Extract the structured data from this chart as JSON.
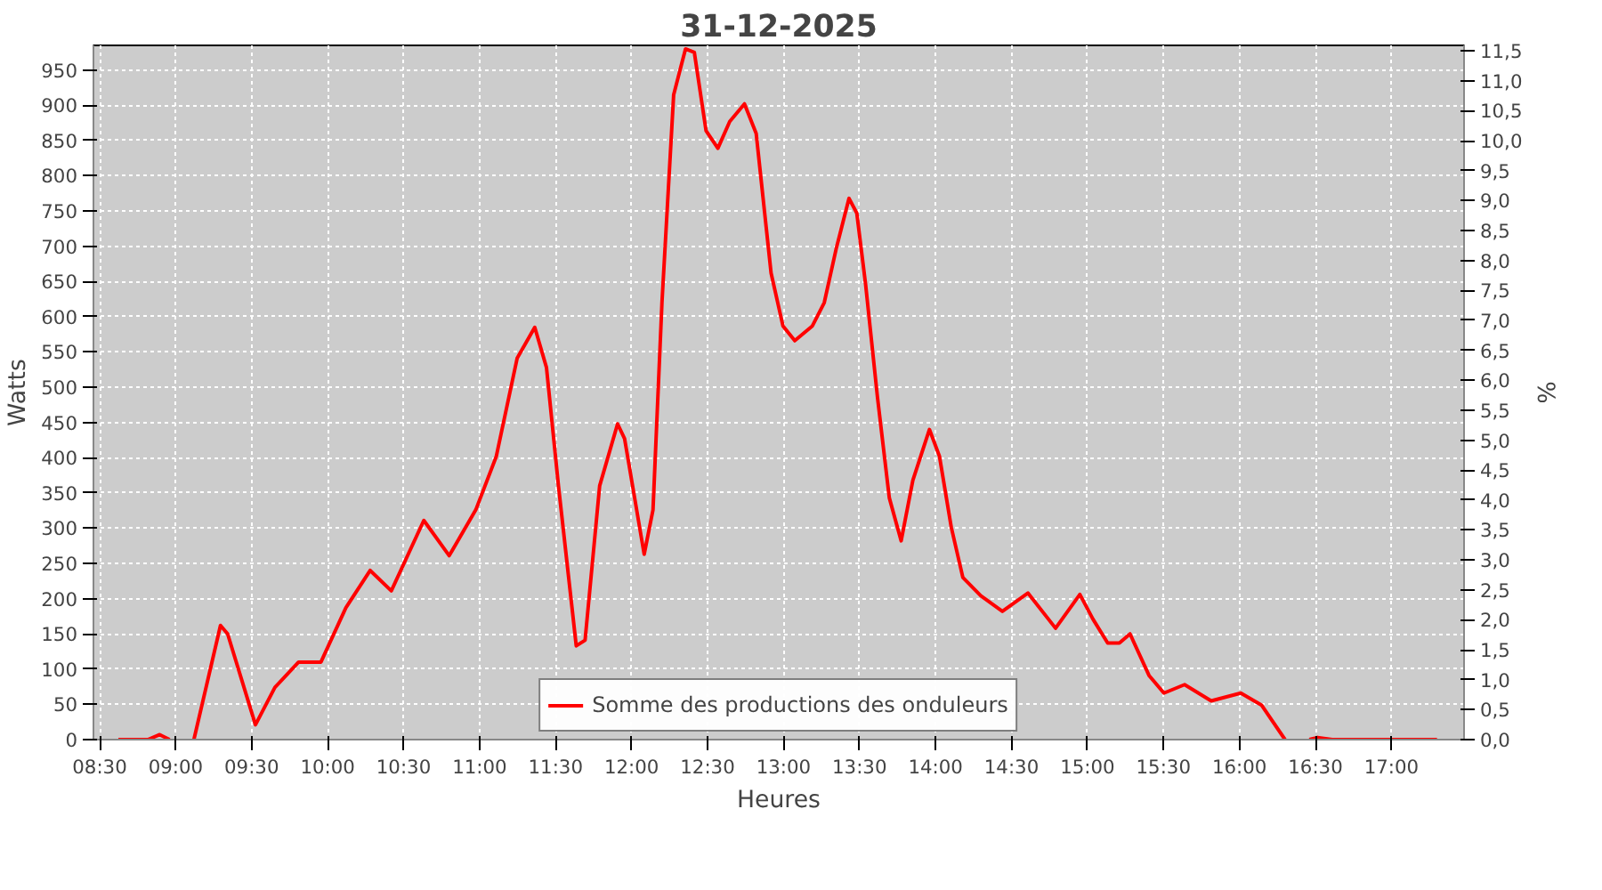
{
  "chart_data": {
    "type": "line",
    "title": "31-12-2025",
    "xlabel": "Heures",
    "ylabel": "Watts",
    "y2label": "%",
    "x": [
      8.623,
      8.817,
      8.895,
      8.96,
      9.04,
      9.12,
      9.295,
      9.342,
      9.525,
      9.653,
      9.809,
      9.956,
      10.12,
      10.28,
      10.419,
      10.633,
      10.8,
      10.975,
      11.11,
      11.247,
      11.363,
      11.44,
      11.519,
      11.636,
      11.694,
      11.79,
      11.908,
      11.954,
      12.083,
      12.141,
      12.2,
      12.277,
      12.355,
      12.413,
      12.49,
      12.568,
      12.646,
      12.743,
      12.82,
      12.918,
      12.996,
      13.074,
      13.19,
      13.268,
      13.346,
      13.431,
      13.482,
      13.54,
      13.618,
      13.696,
      13.774,
      13.851,
      13.96,
      14.026,
      14.104,
      14.18,
      14.298,
      14.44,
      14.608,
      14.79,
      14.95,
      15.036,
      15.133,
      15.21,
      15.28,
      15.405,
      15.503,
      15.639,
      15.814,
      16.009,
      16.145,
      16.3,
      16.4,
      16.46,
      16.514,
      16.61,
      17.3
    ],
    "series": [
      {
        "name": "Somme des productions des onduleurs",
        "color": "#ff0000",
        "values": [
          0,
          0,
          7,
          0,
          null,
          0,
          162,
          150,
          21,
          74,
          110,
          110,
          187,
          240,
          211,
          311,
          261,
          326,
          402,
          541,
          585,
          528,
          360,
          133,
          141,
          360,
          448,
          427,
          263,
          326,
          620,
          915,
          980,
          975,
          864,
          839,
          877,
          902,
          860,
          662,
          587,
          566,
          587,
          620,
          696,
          768,
          747,
          646,
          486,
          343,
          282,
          368,
          440,
          402,
          301,
          230,
          204,
          182,
          208,
          158,
          206,
          171,
          137,
          137,
          150,
          91,
          66,
          78,
          55,
          66,
          49,
          0,
          null,
          0,
          3,
          0,
          0
        ]
      }
    ],
    "xlim": [
      8.459,
      17.478
    ],
    "xticks": [
      {
        "value": 8.5,
        "label": "08:30"
      },
      {
        "value": 9,
        "label": "09:00"
      },
      {
        "value": 9.5,
        "label": "09:30"
      },
      {
        "value": 10,
        "label": "10:00"
      },
      {
        "value": 10.5,
        "label": "10:30"
      },
      {
        "value": 11,
        "label": "11:00"
      },
      {
        "value": 11.5,
        "label": "11:30"
      },
      {
        "value": 12,
        "label": "12:00"
      },
      {
        "value": 12.5,
        "label": "12:30"
      },
      {
        "value": 13,
        "label": "13:00"
      },
      {
        "value": 13.5,
        "label": "13:30"
      },
      {
        "value": 14,
        "label": "14:00"
      },
      {
        "value": 14.5,
        "label": "14:30"
      },
      {
        "value": 15,
        "label": "15:00"
      },
      {
        "value": 15.5,
        "label": "15:30"
      },
      {
        "value": 16,
        "label": "16:00"
      },
      {
        "value": 16.5,
        "label": "16:30"
      },
      {
        "value": 17,
        "label": "17:00"
      }
    ],
    "ylim": [
      0,
      985
    ],
    "yticks": [
      0,
      50,
      100,
      150,
      200,
      250,
      300,
      350,
      400,
      450,
      500,
      550,
      600,
      650,
      700,
      750,
      800,
      850,
      900,
      950
    ],
    "y2lim": [
      0,
      11.59
    ],
    "y2ticks": [
      {
        "value": 0,
        "label": "0,0"
      },
      {
        "value": 0.5,
        "label": "0,5"
      },
      {
        "value": 1,
        "label": "1,0"
      },
      {
        "value": 1.5,
        "label": "1,5"
      },
      {
        "value": 2,
        "label": "2,0"
      },
      {
        "value": 2.5,
        "label": "2,5"
      },
      {
        "value": 3,
        "label": "3,0"
      },
      {
        "value": 3.5,
        "label": "3,5"
      },
      {
        "value": 4,
        "label": "4,0"
      },
      {
        "value": 4.5,
        "label": "4,5"
      },
      {
        "value": 5,
        "label": "5,0"
      },
      {
        "value": 5.5,
        "label": "5,5"
      },
      {
        "value": 6,
        "label": "6,0"
      },
      {
        "value": 6.5,
        "label": "6,5"
      },
      {
        "value": 7,
        "label": "7,0"
      },
      {
        "value": 7.5,
        "label": "7,5"
      },
      {
        "value": 8,
        "label": "8,0"
      },
      {
        "value": 8.5,
        "label": "8,5"
      },
      {
        "value": 9,
        "label": "9,0"
      },
      {
        "value": 9.5,
        "label": "9,5"
      },
      {
        "value": 10,
        "label": "10,0"
      },
      {
        "value": 10.5,
        "label": "10,5"
      },
      {
        "value": 11,
        "label": "11,0"
      },
      {
        "value": 11.5,
        "label": "11,5"
      }
    ],
    "grid": true,
    "legend": "bottom",
    "marker": "none",
    "line_style": "solid"
  }
}
